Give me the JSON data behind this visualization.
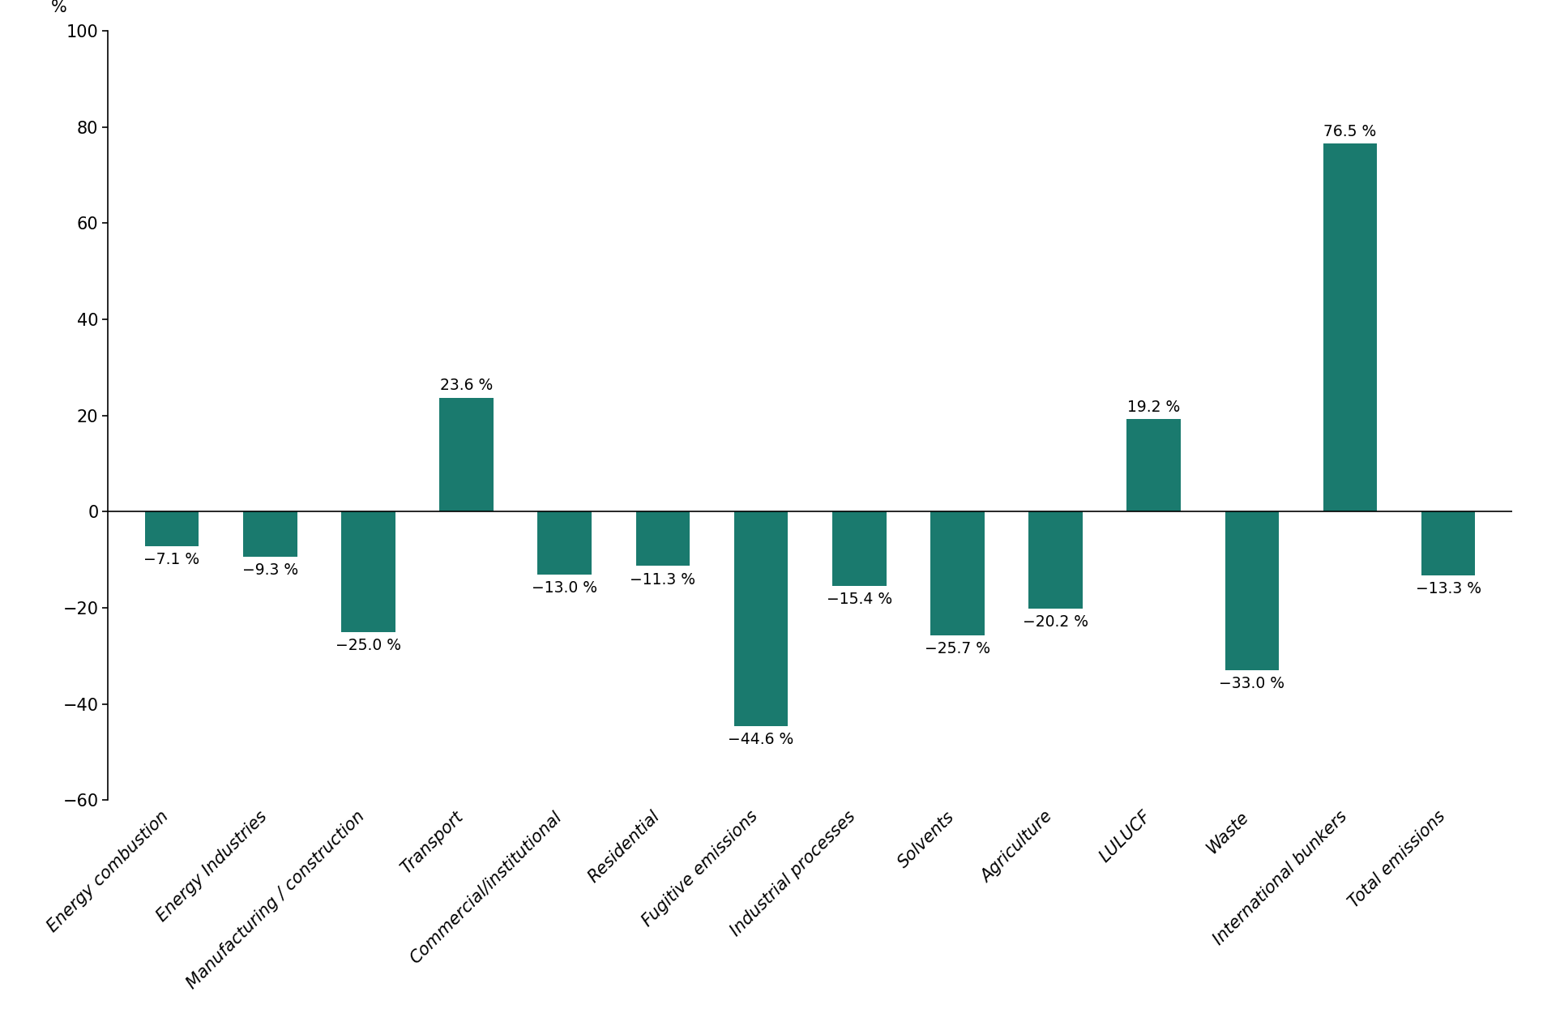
{
  "categories": [
    "Energy combustion",
    "Energy Industries",
    "Manufacturing / construction",
    "Transport",
    "Commercial/institutional",
    "Residential",
    "Fugitive emissions",
    "Industrial processes",
    "Solvents",
    "Agriculture",
    "LULUCF",
    "Waste",
    "International bunkers",
    "Total emissions"
  ],
  "values": [
    -7.1,
    -9.3,
    -25.0,
    23.6,
    -13.0,
    -11.3,
    -44.6,
    -15.4,
    -25.7,
    -20.2,
    19.2,
    -33.0,
    76.5,
    -13.3
  ],
  "bar_color": "#1a7a6e",
  "ylabel": "%",
  "ylim": [
    -60,
    100
  ],
  "yticks": [
    -60,
    -40,
    -20,
    0,
    20,
    40,
    60,
    80,
    100
  ],
  "background_color": "#ffffff",
  "bar_width": 0.55,
  "label_fontsize": 13.5,
  "tick_fontsize": 15,
  "ylabel_fontsize": 15
}
